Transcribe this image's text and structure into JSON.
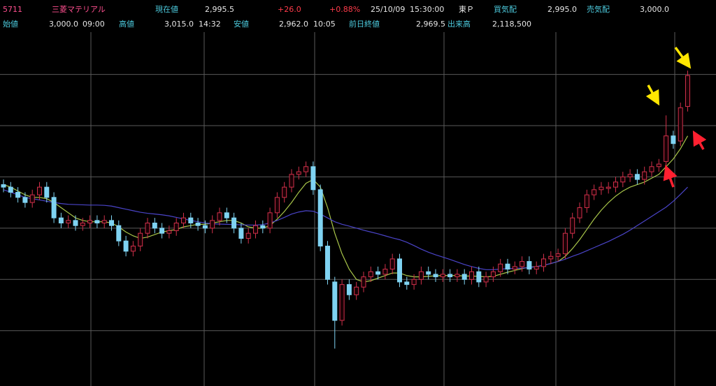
{
  "header": {
    "row1": [
      "5711",
      "三菱マテリアル",
      "現在値",
      "2,995.5",
      "+26.0",
      "+0.88%",
      "25/10/09",
      "15:30:00",
      "東Ｐ",
      "買気配",
      "2,995.0",
      "売気配",
      "3,000.0"
    ],
    "row2": [
      "始値",
      "3,000.0",
      "09:00",
      "高値",
      "3,015.0",
      "14:32",
      "安値",
      "2,962.0",
      "10:05",
      "前日終値",
      "2,969.5",
      "出来高",
      "2,118,500"
    ]
  },
  "chart_data": {
    "type": "candlestick",
    "up_color": "#d0304a",
    "down_color": "#7fd3f2",
    "ylim": [
      1784,
      3165
    ],
    "yticks": [
      2000,
      2200,
      2400,
      2600,
      2800,
      3000
    ],
    "ytick_labels": false,
    "grid": true,
    "open": [
      2570,
      2560,
      2540,
      2520,
      2500,
      2530,
      2560,
      2520,
      2440,
      2420,
      2430,
      2410,
      2420,
      2430,
      2420,
      2430,
      2410,
      2350,
      2310,
      2330,
      2380,
      2420,
      2400,
      2380,
      2390,
      2420,
      2440,
      2420,
      2410,
      2400,
      2430,
      2460,
      2440,
      2400,
      2360,
      2380,
      2410,
      2400,
      2460,
      2520,
      2560,
      2610,
      2620,
      2640,
      2550,
      2330,
      2190,
      2040,
      2180,
      2140,
      2170,
      2210,
      2230,
      2220,
      2240,
      2280,
      2190,
      2180,
      2200,
      2230,
      2220,
      2210,
      2220,
      2210,
      2220,
      2200,
      2230,
      2190,
      2210,
      2230,
      2260,
      2240,
      2250,
      2270,
      2240,
      2250,
      2280,
      2290,
      2300,
      2380,
      2440,
      2480,
      2530,
      2550,
      2555,
      2560,
      2580,
      2600,
      2610,
      2590,
      2620,
      2640,
      2660,
      2760,
      2740,
      2875
    ],
    "high": [
      2590,
      2580,
      2560,
      2540,
      2550,
      2580,
      2580,
      2540,
      2460,
      2450,
      2450,
      2440,
      2450,
      2450,
      2450,
      2450,
      2430,
      2370,
      2350,
      2400,
      2440,
      2440,
      2420,
      2410,
      2440,
      2460,
      2460,
      2440,
      2430,
      2450,
      2480,
      2480,
      2460,
      2420,
      2400,
      2430,
      2430,
      2480,
      2540,
      2580,
      2630,
      2640,
      2660,
      2660,
      2570,
      2350,
      2210,
      2200,
      2200,
      2190,
      2230,
      2250,
      2250,
      2260,
      2300,
      2300,
      2210,
      2220,
      2250,
      2250,
      2240,
      2240,
      2240,
      2240,
      2240,
      2250,
      2250,
      2230,
      2250,
      2280,
      2280,
      2270,
      2290,
      2290,
      2270,
      2300,
      2310,
      2320,
      2400,
      2460,
      2500,
      2550,
      2570,
      2580,
      2580,
      2600,
      2620,
      2630,
      2630,
      2640,
      2660,
      2670,
      2840,
      2780,
      2890,
      3015
    ],
    "low": [
      2540,
      2520,
      2500,
      2480,
      2480,
      2510,
      2500,
      2420,
      2400,
      2400,
      2390,
      2390,
      2400,
      2400,
      2400,
      2390,
      2330,
      2290,
      2290,
      2310,
      2360,
      2380,
      2360,
      2360,
      2370,
      2400,
      2400,
      2390,
      2380,
      2380,
      2410,
      2420,
      2380,
      2340,
      2340,
      2360,
      2380,
      2380,
      2440,
      2500,
      2540,
      2590,
      2600,
      2530,
      2310,
      2180,
      1930,
      2020,
      2120,
      2120,
      2150,
      2190,
      2200,
      2200,
      2220,
      2170,
      2160,
      2160,
      2180,
      2200,
      2190,
      2190,
      2190,
      2190,
      2180,
      2180,
      2170,
      2170,
      2190,
      2210,
      2220,
      2220,
      2230,
      2220,
      2220,
      2230,
      2260,
      2270,
      2280,
      2360,
      2420,
      2460,
      2510,
      2530,
      2535,
      2540,
      2560,
      2580,
      2570,
      2570,
      2600,
      2620,
      2640,
      2710,
      2720,
      2855
    ],
    "close": [
      2560,
      2540,
      2520,
      2500,
      2530,
      2560,
      2520,
      2440,
      2420,
      2430,
      2410,
      2420,
      2430,
      2420,
      2430,
      2410,
      2350,
      2310,
      2330,
      2380,
      2420,
      2400,
      2380,
      2390,
      2420,
      2440,
      2420,
      2410,
      2400,
      2430,
      2460,
      2440,
      2400,
      2360,
      2380,
      2410,
      2400,
      2460,
      2520,
      2560,
      2610,
      2620,
      2640,
      2550,
      2330,
      2200,
      2040,
      2180,
      2140,
      2170,
      2210,
      2230,
      2220,
      2240,
      2280,
      2190,
      2180,
      2200,
      2230,
      2220,
      2210,
      2220,
      2210,
      2220,
      2200,
      2230,
      2190,
      2210,
      2230,
      2260,
      2240,
      2250,
      2270,
      2240,
      2250,
      2280,
      2290,
      2300,
      2380,
      2440,
      2480,
      2530,
      2550,
      2560,
      2560,
      2580,
      2600,
      2610,
      2590,
      2620,
      2640,
      2650,
      2760,
      2730,
      2870,
      2995.5
    ],
    "moving_averages": [
      {
        "color": "#a9c64a",
        "values": [
          2570,
          2560,
          2545,
          2530,
          2520,
          2520,
          2515,
          2500,
          2480,
          2460,
          2440,
          2430,
          2425,
          2425,
          2425,
          2420,
          2405,
          2385,
          2370,
          2360,
          2365,
          2375,
          2385,
          2390,
          2395,
          2405,
          2410,
          2415,
          2415,
          2420,
          2425,
          2430,
          2430,
          2420,
          2405,
          2400,
          2400,
          2410,
          2435,
          2465,
          2500,
          2540,
          2575,
          2590,
          2560,
          2480,
          2380,
          2300,
          2240,
          2200,
          2190,
          2195,
          2205,
          2215,
          2225,
          2225,
          2215,
          2210,
          2210,
          2212,
          2214,
          2215,
          2215,
          2215,
          2213,
          2213,
          2212,
          2210,
          2212,
          2220,
          2228,
          2235,
          2242,
          2248,
          2250,
          2255,
          2262,
          2270,
          2290,
          2320,
          2355,
          2395,
          2435,
          2470,
          2500,
          2525,
          2545,
          2560,
          2570,
          2580,
          2595,
          2610,
          2640,
          2670,
          2710,
          2760
        ]
      },
      {
        "color": "#4a44c8",
        "values": [
          2550,
          2540,
          2530,
          2520,
          2515,
          2510,
          2505,
          2500,
          2496,
          2493,
          2492,
          2491,
          2490,
          2490,
          2489,
          2486,
          2480,
          2474,
          2468,
          2462,
          2458,
          2455,
          2452,
          2448,
          2442,
          2436,
          2430,
          2425,
          2420,
          2417,
          2416,
          2415,
          2414,
          2413,
          2412,
          2412,
          2414,
          2420,
          2430,
          2442,
          2455,
          2463,
          2468,
          2466,
          2455,
          2440,
          2425,
          2415,
          2408,
          2400,
          2392,
          2385,
          2378,
          2370,
          2362,
          2355,
          2345,
          2332,
          2318,
          2306,
          2296,
          2287,
          2278,
          2268,
          2258,
          2250,
          2243,
          2238,
          2238,
          2240,
          2242,
          2243,
          2244,
          2246,
          2250,
          2255,
          2262,
          2270,
          2279,
          2290,
          2300,
          2312,
          2324,
          2336,
          2348,
          2362,
          2376,
          2392,
          2410,
          2428,
          2446,
          2464,
          2482,
          2505,
          2532,
          2560
        ]
      }
    ]
  }
}
